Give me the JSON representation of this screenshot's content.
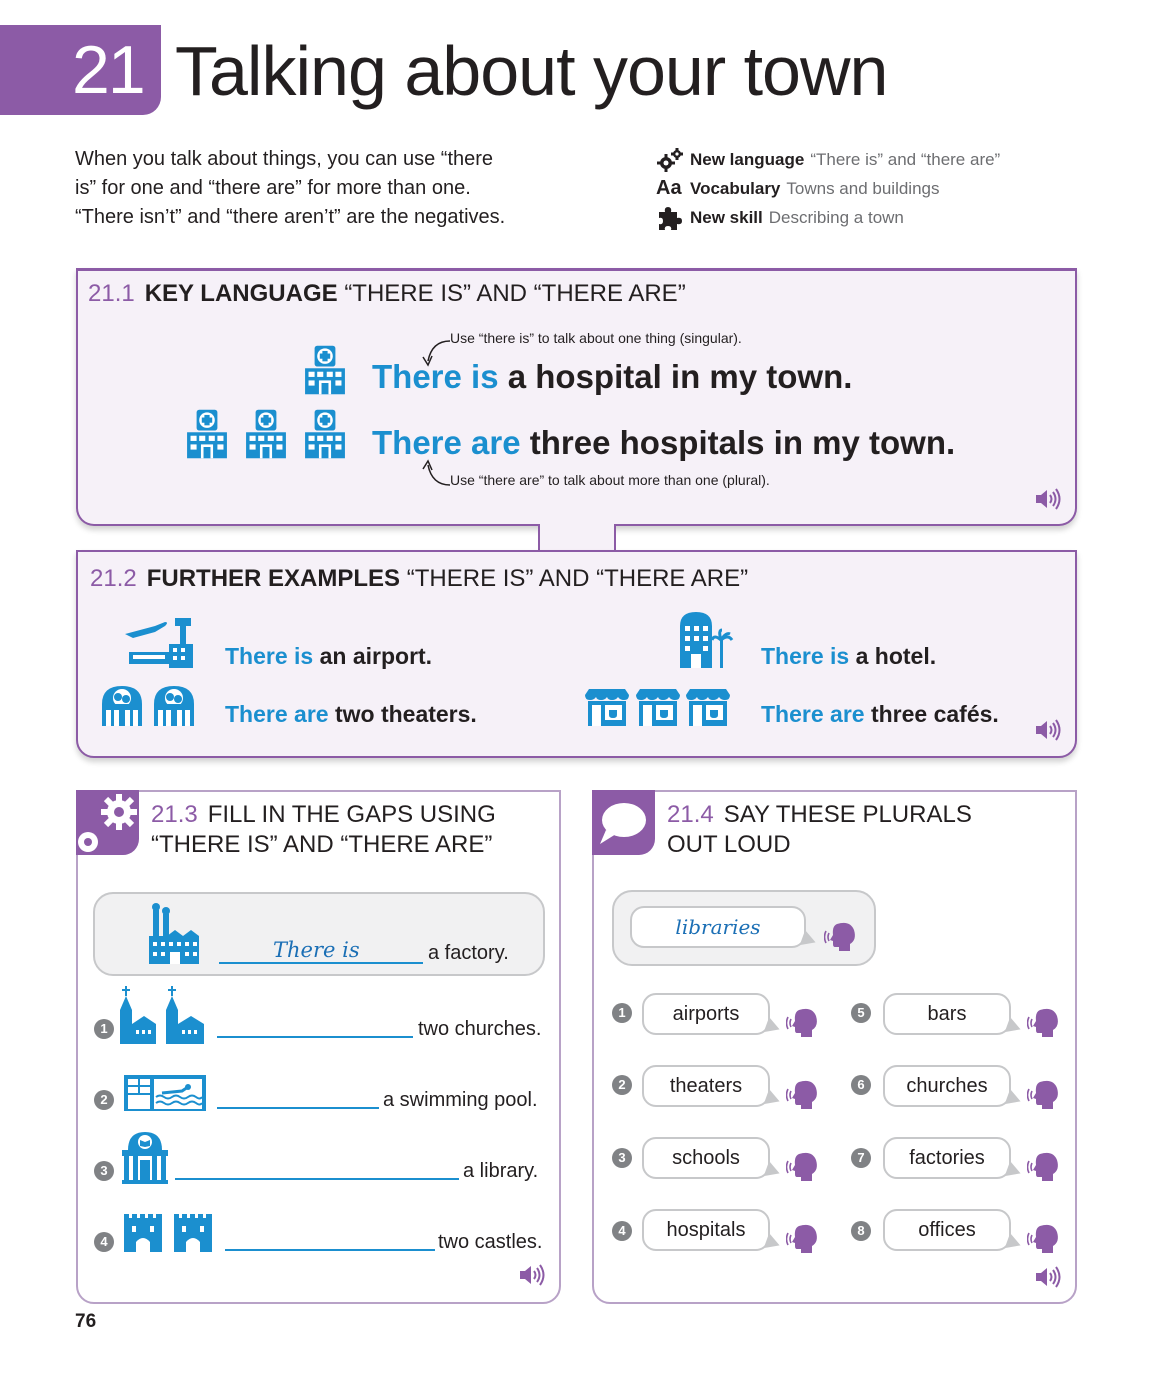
{
  "header": {
    "unit_number": "21",
    "title": "Talking about your town"
  },
  "intro": {
    "line1": "When you talk about things, you can use “there",
    "line2": "is” for one and “there are” for more than one.",
    "line3": "“There isn’t” and “there aren’t” are the negatives."
  },
  "info": [
    {
      "icon": "gears-icon",
      "label": "New language",
      "value": "“There is” and “there are”"
    },
    {
      "icon": "aa-icon",
      "label": "Vocabulary",
      "value": "Towns and buildings"
    },
    {
      "icon": "puzzle-icon",
      "label": "New skill",
      "value": "Describing a town"
    }
  ],
  "key_language": {
    "num": "21.1",
    "title_bold": "KEY LANGUAGE",
    "title_rest": "“THERE IS” AND “THERE ARE”",
    "note_singular": "Use “there is” to talk about one thing (singular).",
    "s1_blue": "There is",
    "s1_rest": "a hospital in my town.",
    "s2_blue": "There are",
    "s2_rest": "three hospitals in my town.",
    "note_plural": "Use “there are” to talk about more than one (plural)."
  },
  "further": {
    "num": "21.2",
    "title_bold": "FURTHER EXAMPLES",
    "title_rest": "“THERE IS” AND “THERE ARE”",
    "items": [
      {
        "blue": "There is",
        "rest": "an airport."
      },
      {
        "blue": "There is",
        "rest": "a hotel."
      },
      {
        "blue": "There are",
        "rest": "two theaters."
      },
      {
        "blue": "There are",
        "rest": "three cafés."
      }
    ]
  },
  "ex3": {
    "num": "21.3",
    "title_l1": "FILL IN THE GAPS USING",
    "title_l2": "“THERE IS” AND “THERE ARE”",
    "example_answer": "There is",
    "example_rest": "a factory.",
    "items": [
      {
        "n": "1",
        "rest": "two churches."
      },
      {
        "n": "2",
        "rest": "a swimming pool."
      },
      {
        "n": "3",
        "rest": "a library."
      },
      {
        "n": "4",
        "rest": "two castles."
      }
    ]
  },
  "ex4": {
    "num": "21.4",
    "title_l1": "SAY THESE PLURALS",
    "title_l2": "OUT LOUD",
    "example": "libraries",
    "items": [
      {
        "n": "1",
        "word": "airports"
      },
      {
        "n": "2",
        "word": "theaters"
      },
      {
        "n": "3",
        "word": "schools"
      },
      {
        "n": "4",
        "word": "hospitals"
      },
      {
        "n": "5",
        "word": "bars"
      },
      {
        "n": "6",
        "word": "churches"
      },
      {
        "n": "7",
        "word": "factories"
      },
      {
        "n": "8",
        "word": "offices"
      }
    ]
  },
  "colors": {
    "purple": "#8c5ba6",
    "blue": "#1b8fcf",
    "panel_bg": "#f6f1f8"
  },
  "page_number": "76"
}
